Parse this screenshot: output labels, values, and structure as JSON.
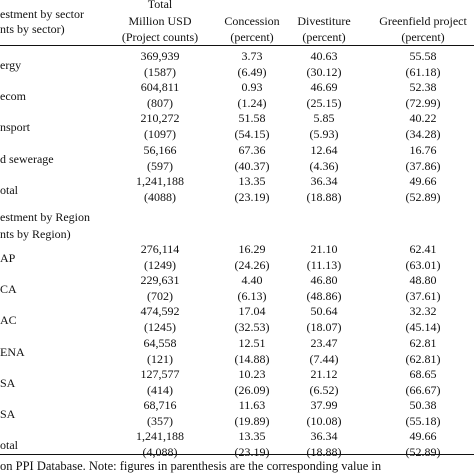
{
  "header": {
    "col0": [
      "estment by sector",
      "nts by sector)"
    ],
    "col1": [
      "Total",
      "Million USD",
      "(Project counts)"
    ],
    "col2": [
      "Concession",
      "(percent)"
    ],
    "col3": [
      "Divestiture",
      "(percent)"
    ],
    "col4": [
      "Greenfield project",
      "(percent)"
    ]
  },
  "sector_rows": [
    {
      "label": "ergy",
      "total": "369,939",
      "count": "(1587)",
      "con": "3.73",
      "con_p": "(6.49)",
      "div": "40.63",
      "div_p": "(30.12)",
      "gre": "55.58",
      "gre_p": "(61.18)"
    },
    {
      "label": "ecom",
      "total": "604,811",
      "count": "(807)",
      "con": "0.93",
      "con_p": "(1.24)",
      "div": "46.69",
      "div_p": "(25.15)",
      "gre": "52.38",
      "gre_p": "(72.99)"
    },
    {
      "label": "nsport",
      "total": "210,272",
      "count": "(1097)",
      "con": "51.58",
      "con_p": "(54.15)",
      "div": "5.85",
      "div_p": "(5.93)",
      "gre": "40.22",
      "gre_p": "(34.28)"
    },
    {
      "label": "d sewerage",
      "total": "56,166",
      "count": "(597)",
      "con": "67.36",
      "con_p": "(40.37)",
      "div": "12.64",
      "div_p": "(4.36)",
      "gre": "16.76",
      "gre_p": "(37.86)"
    },
    {
      "label": "otal",
      "total": "1,241,188",
      "count": "(4088)",
      "con": "13.35",
      "con_p": "(23.19)",
      "div": "36.34",
      "div_p": "(18.88)",
      "gre": "49.66",
      "gre_p": "(52.89)"
    }
  ],
  "region_header": [
    "estment by Region",
    "nts by Region)"
  ],
  "region_rows": [
    {
      "label": "AP",
      "total": "276,114",
      "count": "(1249)",
      "con": "16.29",
      "con_p": "(24.26)",
      "div": "21.10",
      "div_p": "(11.13)",
      "gre": "62.41",
      "gre_p": "(63.01)"
    },
    {
      "label": "CA",
      "total": "229,631",
      "count": "(702)",
      "con": "4.40",
      "con_p": "(6.13)",
      "div": "46.80",
      "div_p": "(48.86)",
      "gre": "48.80",
      "gre_p": "(37.61)"
    },
    {
      "label": "AC",
      "total": "474,592",
      "count": "(1245)",
      "con": "17.04",
      "con_p": "(32.53)",
      "div": "50.64",
      "div_p": "(18.07)",
      "gre": "32.32",
      "gre_p": "(45.14)"
    },
    {
      "label": "ENA",
      "total": "64,558",
      "count": "(121)",
      "con": "12.51",
      "con_p": "(14.88)",
      "div": "23.47",
      "div_p": "(7.44)",
      "gre": "62.81",
      "gre_p": "(62.81)"
    },
    {
      "label": "SA",
      "total": "127,577",
      "count": "(414)",
      "con": "10.23",
      "con_p": "(26.09)",
      "div": "21.12",
      "div_p": "(6.52)",
      "gre": "68.65",
      "gre_p": "(66.67)"
    },
    {
      "label": "SA",
      "total": "68,716",
      "count": "(357)",
      "con": "11.63",
      "con_p": "(19.89)",
      "div": "37.99",
      "div_p": "(10.08)",
      "gre": "50.38",
      "gre_p": "(55.18)"
    },
    {
      "label": "otal",
      "total": "1,241,188",
      "count": "(4,088)",
      "con": "13.35",
      "con_p": "(23.19)",
      "div": "36.34",
      "div_p": "(18.88)",
      "gre": "49.66",
      "gre_p": "(52.89)"
    }
  ],
  "footnote": "on PPI Database. Note: figures in parenthesis are the corresponding value in"
}
